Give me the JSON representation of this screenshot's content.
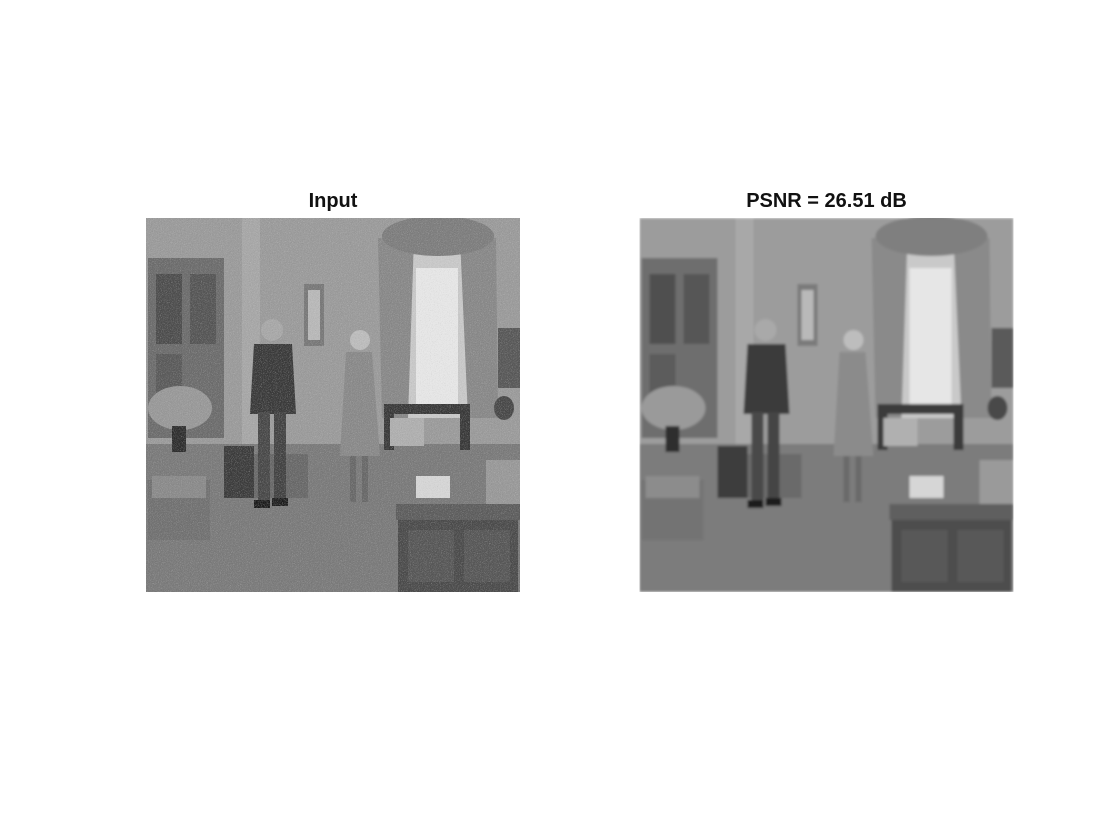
{
  "figure": {
    "panels": [
      {
        "title": "Input",
        "image_desc": "noisy grayscale image"
      },
      {
        "title": "PSNR = 26.51 dB",
        "image_desc": "denoised grayscale image"
      }
    ]
  }
}
